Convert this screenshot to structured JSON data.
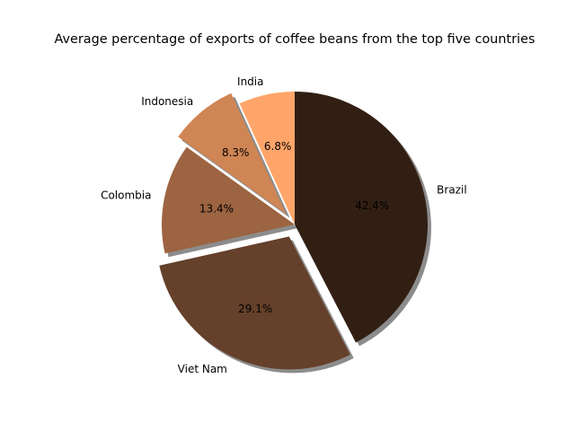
{
  "chart_data": {
    "type": "pie",
    "title": "Average percentage of exports of coffee beans from the top five countries",
    "slices": [
      {
        "label": "Brazil",
        "value": 42.4,
        "pct_label": "42.4%",
        "color": "#321f13",
        "explode": 0.0
      },
      {
        "label": "Viet Nam",
        "value": 29.1,
        "pct_label": "29.1%",
        "color": "#65402a",
        "explode": 0.1
      },
      {
        "label": "Colombia",
        "value": 13.4,
        "pct_label": "13.4%",
        "color": "#9c6441",
        "explode": 0.0
      },
      {
        "label": "Indonesia",
        "value": 8.3,
        "pct_label": "8.3%",
        "color": "#cf8554",
        "explode": 0.1
      },
      {
        "label": "India",
        "value": 6.8,
        "pct_label": "6.8%",
        "color": "#ffa56a",
        "explode": 0.0
      }
    ],
    "start_angle_deg": 90,
    "direction": "clockwise",
    "shadow": true,
    "shadow_color": "#808080"
  }
}
